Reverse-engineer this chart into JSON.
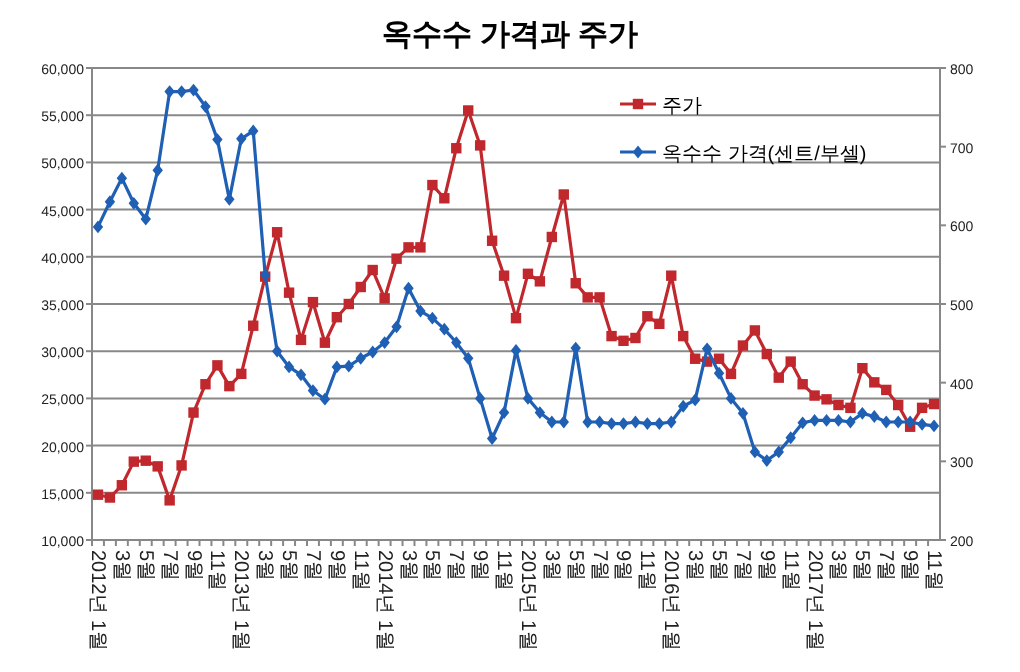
{
  "chart_data": {
    "type": "line",
    "title": "옥수수 가격과 주가",
    "categories": [
      "2012년 1월",
      null,
      "3월",
      null,
      "5월",
      null,
      "7월",
      null,
      "9월",
      null,
      "11월",
      null,
      "2013년 1월",
      null,
      "3월",
      null,
      "5월",
      null,
      "7월",
      null,
      "9월",
      null,
      "11월",
      null,
      "2014년 1월",
      null,
      "3월",
      null,
      "5월",
      null,
      "7월",
      null,
      "9월",
      null,
      "11월",
      null,
      "2015년 1월",
      null,
      "3월",
      null,
      "5월",
      null,
      "7월",
      null,
      "9월",
      null,
      "11월",
      null,
      "2016년 1월",
      null,
      "3월",
      null,
      "5월",
      null,
      "7월",
      null,
      "9월",
      null,
      "11월",
      null,
      "2017년 1월",
      null,
      "3월",
      null,
      "5월",
      null,
      "7월",
      null,
      "9월",
      null,
      "11월"
    ],
    "series": [
      {
        "name": "주가",
        "color": "#c0282d",
        "marker": "square",
        "values": [
          14800,
          14500,
          15800,
          18300,
          18400,
          17800,
          14200,
          17900,
          23500,
          26500,
          28500,
          26300,
          27600,
          32700,
          37900,
          42600,
          36200,
          31200,
          35200,
          30900,
          33600,
          35000,
          36800,
          38600,
          35600,
          39800,
          41000,
          41000,
          47600,
          46200,
          51500,
          55500,
          51800,
          41700,
          38000,
          33500,
          38200,
          37400,
          42100,
          46600,
          37200,
          35700,
          35700,
          31600,
          31100,
          31400,
          33700,
          32900,
          38000,
          31600,
          29200,
          28900,
          29200,
          27600,
          30600,
          32200,
          29700,
          27200,
          28900,
          26500,
          25300,
          24900,
          24300,
          24000,
          28200,
          26700,
          25900,
          24300,
          22000,
          24000,
          24400
        ]
      },
      {
        "name": "옥수수 가격(센트/부셀)",
        "color": "#1f5fb4",
        "marker": "diamond",
        "axis": "y2",
        "values": [
          598,
          630,
          660,
          628,
          608,
          670,
          770,
          770,
          772,
          751,
          709,
          633,
          710,
          720,
          537,
          440,
          420,
          410,
          390,
          379,
          420,
          421,
          431,
          439,
          451,
          471,
          520,
          491,
          482,
          468,
          451,
          431,
          380,
          329,
          362,
          441,
          380,
          362,
          350,
          350,
          444,
          350,
          350,
          348,
          348,
          350,
          348,
          348,
          350,
          370,
          378,
          443,
          412,
          380,
          361,
          312,
          301,
          312,
          330,
          349,
          352,
          352,
          352,
          350,
          361,
          357,
          350,
          350,
          350,
          347,
          345
        ]
      }
    ],
    "ylim": [
      10000,
      60000
    ],
    "yticks": [
      {
        "value": 10000,
        "label": "10,000"
      },
      {
        "value": 15000,
        "label": "15,000"
      },
      {
        "value": 20000,
        "label": "20,000"
      },
      {
        "value": 25000,
        "label": "25,000"
      },
      {
        "value": 30000,
        "label": "30,000"
      },
      {
        "value": 35000,
        "label": "35,000"
      },
      {
        "value": 40000,
        "label": "40,000"
      },
      {
        "value": 45000,
        "label": "45,000"
      },
      {
        "value": 50000,
        "label": "50,000"
      },
      {
        "value": 55000,
        "label": "55,000"
      },
      {
        "value": 60000,
        "label": "60,000"
      }
    ],
    "y2lim": [
      200,
      800
    ],
    "y2ticks": [
      200,
      300,
      400,
      500,
      600,
      700,
      800
    ],
    "grid": "y",
    "legend": "top right"
  }
}
